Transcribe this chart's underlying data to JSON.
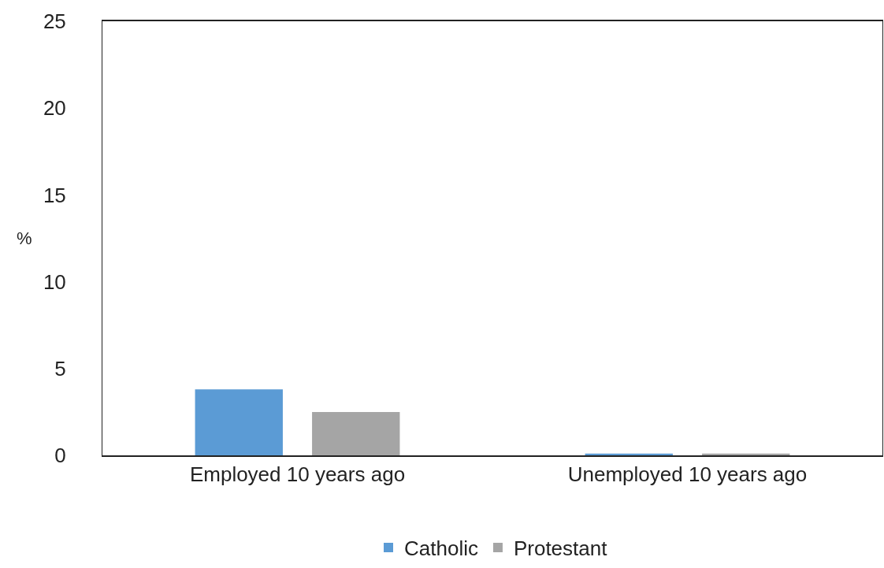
{
  "chart_data": {
    "type": "bar",
    "ylabel": "%",
    "categories": [
      "Employed 10 years ago",
      "Unemployed 10 years ago"
    ],
    "series": [
      {
        "name": "Catholic",
        "color": "#5b9bd5",
        "values": [
          3.8,
          0.1
        ]
      },
      {
        "name": "Protestant",
        "color": "#a5a5a5",
        "values": [
          2.5,
          0.1
        ]
      }
    ],
    "ylim": [
      0,
      25
    ],
    "yticks": [
      0,
      5,
      10,
      15,
      20,
      25
    ],
    "grid": false,
    "legend": "bottom"
  }
}
